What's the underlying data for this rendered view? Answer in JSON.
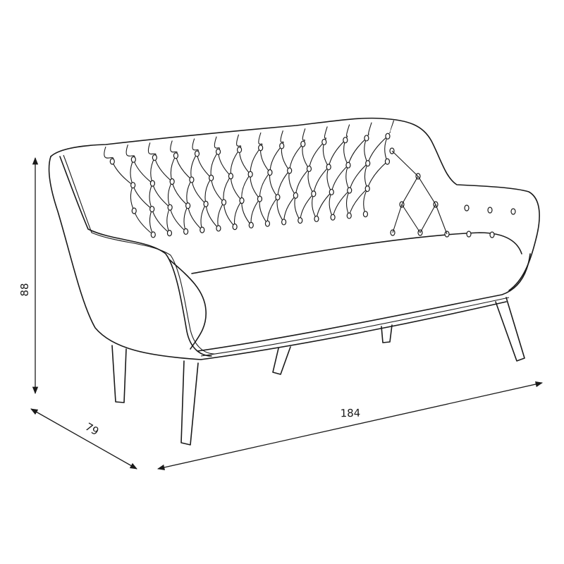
{
  "dimensions": {
    "height": "88",
    "depth": "79",
    "width": "184"
  },
  "colors": {
    "line": "#1a1a1a",
    "background": "#ffffff"
  }
}
